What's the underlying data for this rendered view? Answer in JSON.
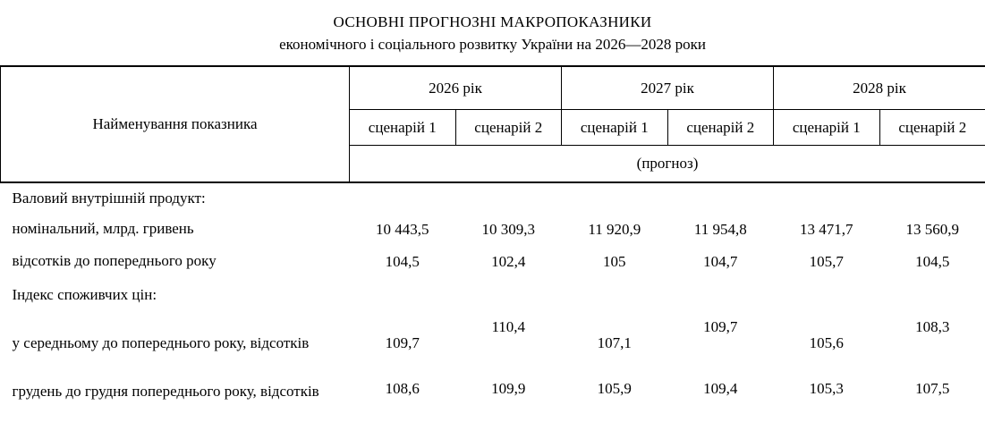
{
  "title": "ОСНОВНІ ПРОГНОЗНІ МАКРОПОКАЗНИКИ",
  "subtitle": "економічного і соціального розвитку України на 2026—2028 роки",
  "table": {
    "name_header": "Найменування показника",
    "years": [
      "2026 рік",
      "2027 рік",
      "2028 рік"
    ],
    "scenario_headers": [
      "сценарій 1",
      "сценарій 2",
      "сценарій 1",
      "сценарій 2",
      "сценарій 1",
      "сценарій 2"
    ],
    "forecast_label": "(прогноз)",
    "rows": [
      {
        "label": "Валовий внутрішній продукт:",
        "values": [
          "",
          "",
          "",
          "",
          "",
          ""
        ]
      },
      {
        "label": "номінальний, млрд. гривень",
        "values": [
          "10 443,5",
          "10 309,3",
          "11 920,9",
          "11 954,8",
          "13 471,7",
          "13 560,9"
        ]
      },
      {
        "label": "відсотків до попереднього року",
        "values": [
          "104,5",
          "102,4",
          "105",
          "104,7",
          "105,7",
          "104,5"
        ]
      },
      {
        "label": "Індекс споживчих цін:",
        "values": [
          "",
          "",
          "",
          "",
          "",
          ""
        ]
      },
      {
        "label": "у середньому до попереднього року, відсотків",
        "values": [
          "109,7",
          "110,4",
          "107,1",
          "109,7",
          "105,6",
          "108,3"
        ]
      },
      {
        "label": "грудень до грудня попереднього року, відсотків",
        "values": [
          "108,6",
          "109,9",
          "105,9",
          "109,4",
          "105,3",
          "107,5"
        ]
      }
    ],
    "colors": {
      "text": "#000000",
      "background": "#ffffff",
      "border": "#000000"
    }
  }
}
